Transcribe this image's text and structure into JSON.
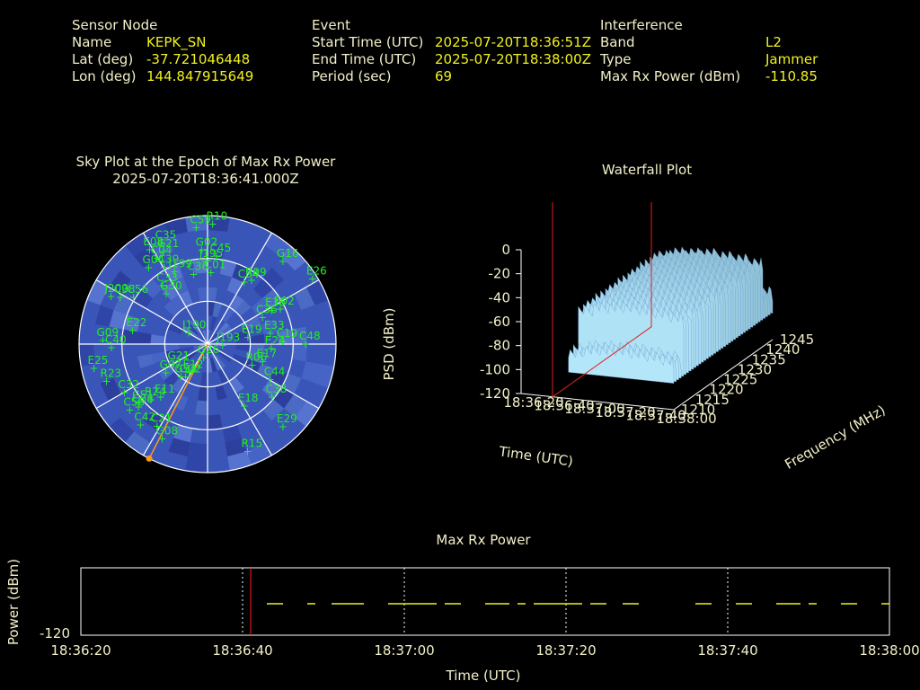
{
  "header": {
    "sensor": {
      "heading": "Sensor Node",
      "rows": [
        {
          "label": "Name",
          "value": "KEPK_SN"
        },
        {
          "label": "Lat (deg)",
          "value": "-37.721046448"
        },
        {
          "label": "Lon (deg)",
          "value": "144.847915649"
        }
      ]
    },
    "event": {
      "heading": "Event",
      "rows": [
        {
          "label": "Start Time (UTC)",
          "value": "2025-07-20T18:36:51Z"
        },
        {
          "label": "End Time (UTC)",
          "value": "2025-07-20T18:38:00Z"
        },
        {
          "label": "Period (sec)",
          "value": "69"
        }
      ]
    },
    "interference": {
      "heading": "Interference",
      "rows": [
        {
          "label": "Band",
          "value": "L2"
        },
        {
          "label": "Type",
          "value": "Jammer"
        },
        {
          "label": "Max Rx Power (dBm)",
          "value": "-110.85"
        }
      ]
    }
  },
  "skyplot": {
    "title_line1": "Sky Plot at the Epoch of Max Rx Power",
    "title_line2": "2025-07-20T18:36:41.000Z",
    "colors": {
      "background": "#3a55b8",
      "grid": "#ffffff",
      "sat": "#22ee22",
      "direction": "#ff9a1a"
    },
    "direction_azimuth_deg": 207,
    "satellites": [
      {
        "id": "R10",
        "az": 2,
        "el": 6
      },
      {
        "id": "C59",
        "az": 354,
        "el": 8
      },
      {
        "id": "C35",
        "az": 335,
        "el": 12
      },
      {
        "id": "E08",
        "az": 328,
        "el": 12
      },
      {
        "id": "G21",
        "az": 334,
        "el": 18
      },
      {
        "id": "G02",
        "az": 356,
        "el": 24
      },
      {
        "id": "C45",
        "az": 5,
        "el": 28
      },
      {
        "id": "C04",
        "az": 329,
        "el": 20
      },
      {
        "id": "G04",
        "az": 322,
        "el": 22
      },
      {
        "id": "J195",
        "az": 358,
        "el": 32
      },
      {
        "id": "C39",
        "az": 330,
        "el": 28
      },
      {
        "id": "J199",
        "az": 335,
        "el": 34
      },
      {
        "id": "C36",
        "az": 348,
        "el": 40
      },
      {
        "id": "C01",
        "az": 2,
        "el": 40
      },
      {
        "id": "C34",
        "az": 30,
        "el": 40
      },
      {
        "id": "G16",
        "az": 42,
        "el": 12
      },
      {
        "id": "R09",
        "az": 34,
        "el": 36
      },
      {
        "id": "E26",
        "az": 58,
        "el": 4
      },
      {
        "id": "C33",
        "az": 322,
        "el": 38
      },
      {
        "id": "G30",
        "az": 320,
        "el": 44
      },
      {
        "id": "J200",
        "az": 296,
        "el": 14
      },
      {
        "id": "C38",
        "az": 298,
        "el": 20
      },
      {
        "id": "C56",
        "az": 302,
        "el": 28
      },
      {
        "id": "E36",
        "az": 62,
        "el": 40
      },
      {
        "id": "E02",
        "az": 64,
        "el": 34
      },
      {
        "id": "C36",
        "az": 64,
        "el": 48
      },
      {
        "id": "E33",
        "az": 80,
        "el": 46
      },
      {
        "id": "E22",
        "az": 280,
        "el": 36
      },
      {
        "id": "G09",
        "az": 272,
        "el": 16
      },
      {
        "id": "C40",
        "az": 268,
        "el": 22
      },
      {
        "id": "E19",
        "az": 80,
        "el": 62
      },
      {
        "id": "C19",
        "az": 88,
        "el": 38
      },
      {
        "id": "C48",
        "az": 90,
        "el": 22
      },
      {
        "id": "J190",
        "az": 300,
        "el": 74
      },
      {
        "id": "E25",
        "az": 258,
        "el": 8
      },
      {
        "id": "E24",
        "az": 94,
        "el": 46
      },
      {
        "id": "J193",
        "az": 96,
        "el": 80
      },
      {
        "id": "G26",
        "az": 200,
        "el": 80
      },
      {
        "id": "G21",
        "az": 240,
        "el": 62
      },
      {
        "id": "G07",
        "az": 236,
        "el": 54
      },
      {
        "id": "E17",
        "az": 108,
        "el": 50
      },
      {
        "id": "R06",
        "az": 116,
        "el": 56
      },
      {
        "id": "C08",
        "az": 228,
        "el": 24
      },
      {
        "id": "R23",
        "az": 250,
        "el": 14
      },
      {
        "id": "C32",
        "az": 240,
        "el": 22
      },
      {
        "id": "C44",
        "az": 120,
        "el": 40
      },
      {
        "id": "G34",
        "az": 220,
        "el": 60
      },
      {
        "id": "E12",
        "az": 214,
        "el": 66
      },
      {
        "id": "C51",
        "az": 230,
        "el": 26
      },
      {
        "id": "E11",
        "az": 222,
        "el": 40
      },
      {
        "id": "R24",
        "az": 226,
        "el": 34
      },
      {
        "id": "E18",
        "az": 150,
        "el": 40
      },
      {
        "id": "C38",
        "az": 130,
        "el": 32
      },
      {
        "id": "C58",
        "az": 230,
        "el": 18
      },
      {
        "id": "E29",
        "az": 138,
        "el": 12
      },
      {
        "id": "C42",
        "az": 220,
        "el": 16
      },
      {
        "id": "C21",
        "az": 212,
        "el": 22
      },
      {
        "id": "G08",
        "az": 206,
        "el": 16
      },
      {
        "id": "R15",
        "az": 160,
        "el": 10
      },
      {
        "id": "G02",
        "az": 215,
        "el": 62
      }
    ]
  },
  "waterfall": {
    "title": "Waterfall Plot",
    "zlabel": "PSD (dBm)",
    "xlabel": "Time (UTC)",
    "ylabel": "Frequency (MHz)",
    "z_ticks": [
      "0",
      "-20",
      "-40",
      "-60",
      "-80",
      "-100",
      "-120"
    ],
    "time_ticks": [
      "18:36:20",
      "18:36:40",
      "18:37:00",
      "18:37:20",
      "18:37:40",
      "18:38:00"
    ],
    "freq_ticks": [
      "1210",
      "1215",
      "1220",
      "1225",
      "1230",
      "1235",
      "1240",
      "1245"
    ]
  },
  "chart_data": [
    {
      "type": "scatter",
      "title": "Waterfall Plot",
      "xlabel": "Time (UTC)",
      "ylabel": "Frequency (MHz)",
      "zlabel": "PSD (dBm)",
      "xlim": [
        "18:36:20",
        "18:38:00"
      ],
      "ylim": [
        1210,
        1245
      ],
      "zlim": [
        -120,
        0
      ],
      "series": [
        {
          "x": [
            "18:36:51",
            "18:37:00",
            "18:37:10",
            "18:37:20",
            "18:37:30",
            "18:37:40",
            "18:37:50",
            "18:38:00"
          ],
          "values": [
            -52,
            -48,
            -47,
            -46,
            -47,
            -48,
            -50,
            -58
          ]
        }
      ]
    },
    {
      "type": "line",
      "title": "Max Rx Power",
      "xlabel": "Time (UTC)",
      "ylabel": "Power (dBm)",
      "x_ticks": [
        "18:36:20",
        "18:36:40",
        "18:37:00",
        "18:37:20",
        "18:37:40",
        "18:38:00"
      ],
      "y_ticks": [
        "-120"
      ],
      "xlim": [
        "18:36:20",
        "18:38:00"
      ],
      "marker_time": "18:36:41",
      "series": [
        {
          "segments_sec": [
            [
              33,
              35
            ],
            [
              38,
              39
            ],
            [
              41,
              45
            ],
            [
              48,
              54
            ],
            [
              55,
              57
            ],
            [
              60,
              63
            ],
            [
              64,
              65
            ],
            [
              66,
              72
            ],
            [
              73,
              75
            ],
            [
              77,
              79
            ],
            [
              86,
              88
            ],
            [
              91,
              93
            ],
            [
              96,
              99
            ],
            [
              100,
              101
            ],
            [
              104,
              106
            ],
            [
              109,
              110
            ],
            [
              114,
              116
            ],
            [
              120,
              124
            ]
          ]
        }
      ]
    }
  ],
  "maxpower": {
    "title": "Max Rx Power",
    "xlabel": "Time (UTC)",
    "ylabel": "Power (dBm)",
    "y_tick": "-120",
    "x_ticks": [
      "18:36:20",
      "18:36:40",
      "18:37:00",
      "18:37:20",
      "18:37:40",
      "18:38:00"
    ],
    "colors": {
      "frame": "#ffffff",
      "trace": "#f0f020",
      "marker": "#ff2020"
    }
  }
}
